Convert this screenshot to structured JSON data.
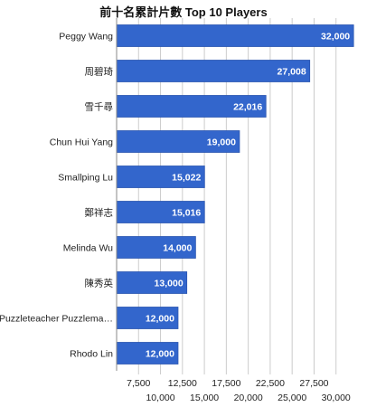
{
  "chart_data": {
    "type": "bar",
    "orientation": "horizontal",
    "title": "前十名累計片數 Top 10 Players",
    "xlabel": "",
    "ylabel": "",
    "categories": [
      "Peggy Wang",
      "周碧琦",
      "雪千尋",
      "Chun Hui Yang",
      "Smallping Lu",
      "鄭祥志",
      "Melinda Wu",
      "陳秀英",
      "Puzzleteacher Puzzlema…",
      "Rhodo Lin"
    ],
    "values": [
      32000,
      27008,
      22016,
      19000,
      15022,
      15016,
      14000,
      13000,
      12000,
      12000
    ],
    "value_labels": [
      "32,000",
      "27,008",
      "22,016",
      "19,000",
      "15,022",
      "15,016",
      "14,000",
      "13,000",
      "12,000",
      "12,000"
    ],
    "xlim": [
      5000,
      32500
    ],
    "ticks": [
      7500,
      10000,
      12500,
      15000,
      17500,
      20000,
      22500,
      25000,
      27500,
      30000
    ],
    "tick_labels": [
      "7,500",
      "10,000",
      "12,500",
      "15,000",
      "17,500",
      "20,000",
      "22,500",
      "25,000",
      "27,500",
      "30,000"
    ],
    "grid": true,
    "colors": {
      "bar": "#3366cc",
      "bar_edge": "#2a55b0",
      "grid": "#cccccc",
      "axis": "#888888"
    }
  }
}
